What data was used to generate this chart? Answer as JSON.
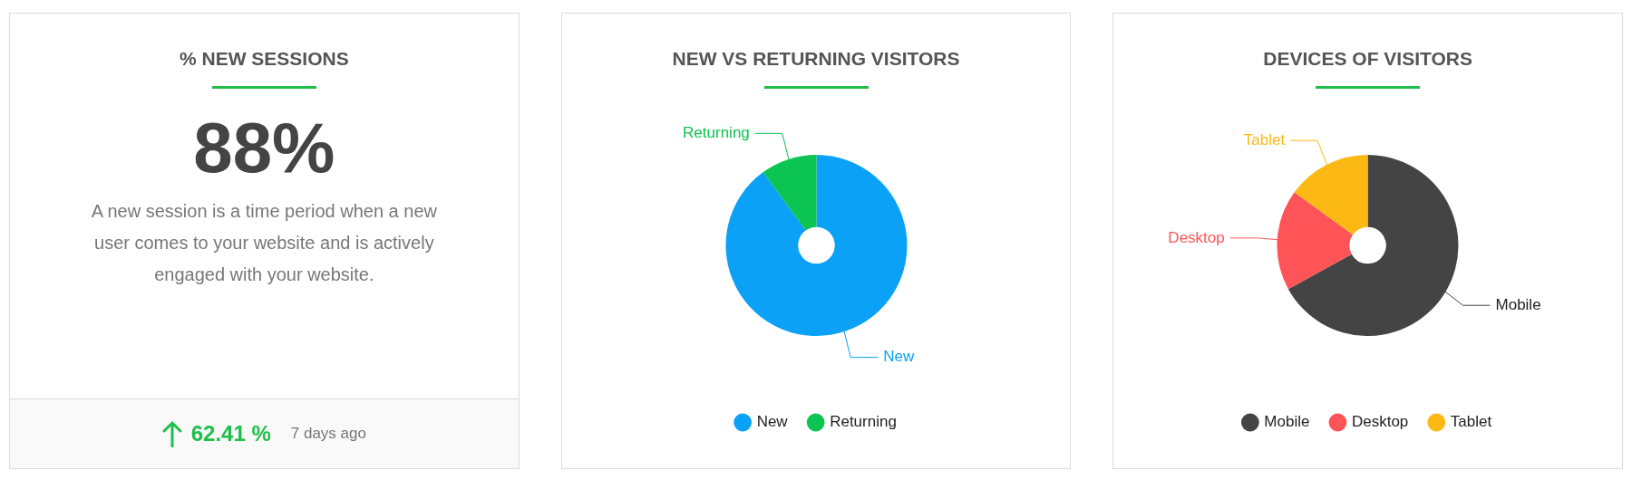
{
  "chart_data": [
    {
      "type": "other",
      "title": "% NEW SESSIONS",
      "annotations": [
        "88%",
        "A new session is a time period when a new user comes to your website and is actively engaged with your website.",
        "62.41 %",
        "7 days ago"
      ]
    },
    {
      "type": "donut",
      "title": "NEW VS RETURNING VISITORS",
      "categories": [
        "New",
        "Returning"
      ],
      "values": [
        90,
        10
      ],
      "colors": [
        "#0aa1f6",
        "#0bc451"
      ],
      "legend": "bottom"
    },
    {
      "type": "donut",
      "title": "DEVICES OF VISITORS",
      "categories": [
        "Mobile",
        "Desktop",
        "Tablet"
      ],
      "values": [
        67,
        18,
        15
      ],
      "colors": [
        "#444444",
        "#fe5457",
        "#fdb913"
      ],
      "legend": "bottom"
    }
  ]
}
